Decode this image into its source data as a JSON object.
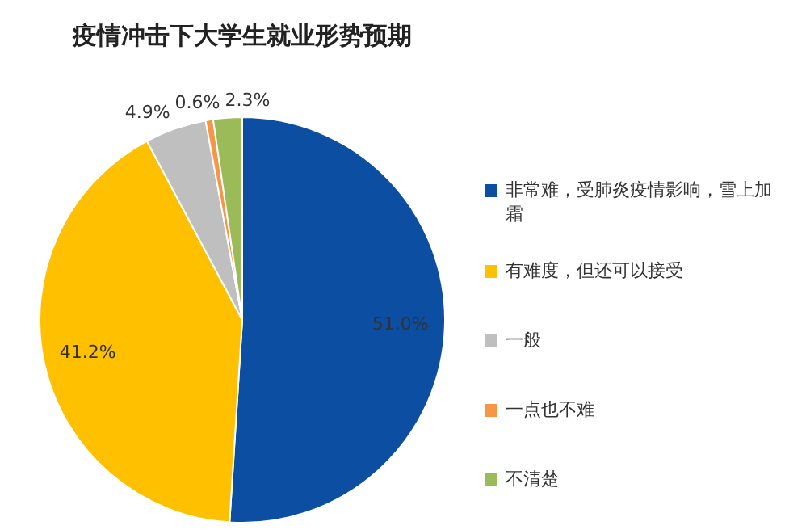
{
  "chart_data": {
    "type": "pie",
    "title": "疫情冲击下大学生就业形势预期",
    "categories": [
      "非常难，受肺炎疫情影响，雪上加霜",
      "有难度，但还可以接受",
      "一般",
      "一点也不难",
      "不清楚"
    ],
    "values": [
      51.0,
      41.2,
      4.9,
      0.6,
      2.3
    ],
    "value_labels": [
      "51.0%",
      "41.2%",
      "4.9%",
      "0.6%",
      "2.3%"
    ],
    "colors": [
      "#0b4ea2",
      "#ffc000",
      "#bfbfbf",
      "#f79646",
      "#9bbb59"
    ],
    "legend": "right"
  }
}
